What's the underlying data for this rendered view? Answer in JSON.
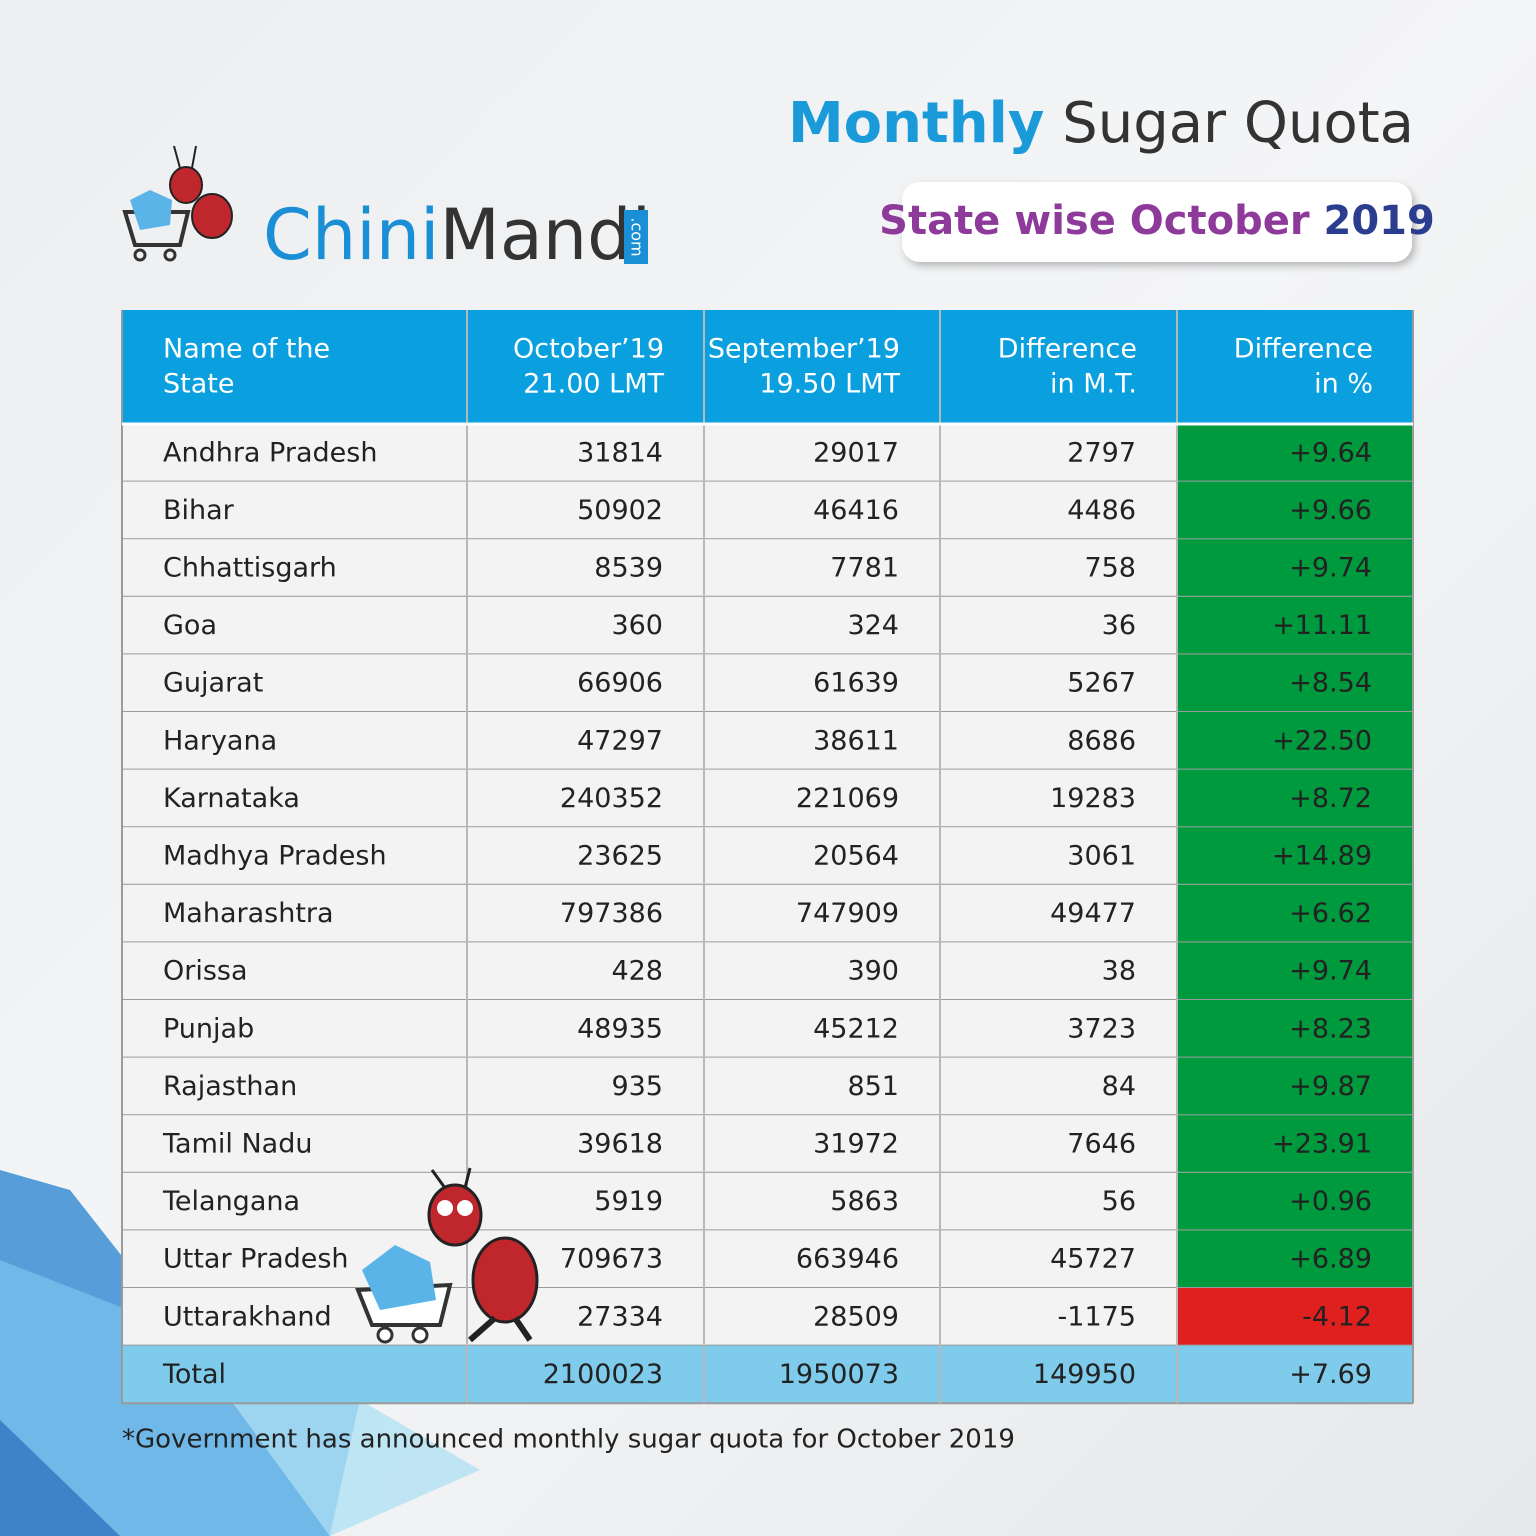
{
  "logo": {
    "name_part1": "Chini",
    "name_part2": "Mandi",
    "domain": ".com"
  },
  "header": {
    "title_highlight": "Monthly",
    "title_rest": "Sugar Quota",
    "subtitle": "State wise October",
    "subtitle_year": "2019"
  },
  "table": {
    "columns": [
      [
        "Name of the",
        "State"
      ],
      [
        "October’19",
        "21.00 LMT"
      ],
      [
        "September’19",
        "19.50 LMT"
      ],
      [
        "Difference",
        "in M.T."
      ],
      [
        "Difference",
        "in %"
      ]
    ],
    "rows": [
      [
        "Andhra Pradesh",
        "31814",
        "29017",
        "2797",
        "+9.64"
      ],
      [
        "Bihar",
        "50902",
        "46416",
        "4486",
        "+9.66"
      ],
      [
        "Chhattisgarh",
        "8539",
        "7781",
        "758",
        "+9.74"
      ],
      [
        "Goa",
        "360",
        "324",
        "36",
        "+11.11"
      ],
      [
        "Gujarat",
        "66906",
        "61639",
        "5267",
        "+8.54"
      ],
      [
        "Haryana",
        "47297",
        "38611",
        "8686",
        "+22.50"
      ],
      [
        "Karnataka",
        "240352",
        "221069",
        "19283",
        "+8.72"
      ],
      [
        "Madhya Pradesh",
        "23625",
        "20564",
        "3061",
        "+14.89"
      ],
      [
        "Maharashtra",
        "797386",
        "747909",
        "49477",
        "+6.62"
      ],
      [
        "Orissa",
        "428",
        "390",
        "38",
        "+9.74"
      ],
      [
        "Punjab",
        "48935",
        "45212",
        "3723",
        "+8.23"
      ],
      [
        "Rajasthan",
        "935",
        "851",
        "84",
        "+9.87"
      ],
      [
        "Tamil Nadu",
        "39618",
        "31972",
        "7646",
        "+23.91"
      ],
      [
        "Telangana",
        "5919",
        "5863",
        "56",
        "+0.96"
      ],
      [
        "Uttar Pradesh",
        "709673",
        "663946",
        "45727",
        "+6.89"
      ],
      [
        "Uttarakhand",
        "27334",
        "28509",
        "-1175",
        "-4.12"
      ]
    ],
    "total": [
      "Total",
      "2100023",
      "1950073",
      "149950",
      "+7.69"
    ]
  },
  "footnote": "*Government has announced monthly sugar quota for October 2019"
}
